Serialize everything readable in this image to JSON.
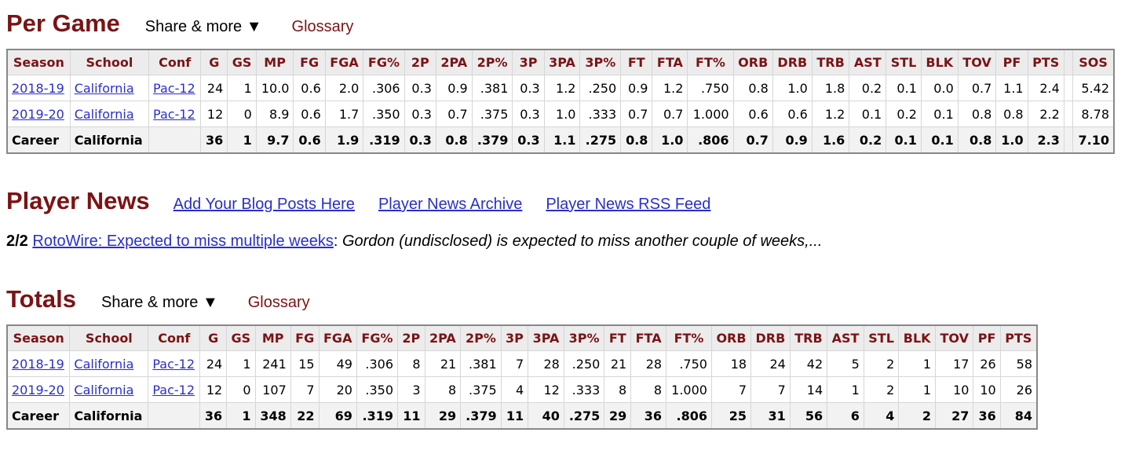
{
  "per_game": {
    "title": "Per Game",
    "share_label": "Share & more ▼",
    "glossary_label": "Glossary",
    "headers": [
      "Season",
      "School",
      "Conf",
      "G",
      "GS",
      "MP",
      "FG",
      "FGA",
      "FG%",
      "2P",
      "2PA",
      "2P%",
      "3P",
      "3PA",
      "3P%",
      "FT",
      "FTA",
      "FT%",
      "ORB",
      "DRB",
      "TRB",
      "AST",
      "STL",
      "BLK",
      "TOV",
      "PF",
      "PTS",
      "",
      "SOS"
    ],
    "rows": [
      [
        "2018-19",
        "California",
        "Pac-12",
        "24",
        "1",
        "10.0",
        "0.6",
        "2.0",
        ".306",
        "0.3",
        "0.9",
        ".381",
        "0.3",
        "1.2",
        ".250",
        "0.9",
        "1.2",
        ".750",
        "0.8",
        "1.0",
        "1.8",
        "0.2",
        "0.1",
        "0.0",
        "0.7",
        "1.1",
        "2.4",
        "",
        "5.42"
      ],
      [
        "2019-20",
        "California",
        "Pac-12",
        "12",
        "0",
        "8.9",
        "0.6",
        "1.7",
        ".350",
        "0.3",
        "0.7",
        ".375",
        "0.3",
        "1.0",
        ".333",
        "0.7",
        "0.7",
        "1.000",
        "0.6",
        "0.6",
        "1.2",
        "0.1",
        "0.2",
        "0.1",
        "0.8",
        "0.8",
        "2.2",
        "",
        "8.78"
      ]
    ],
    "career": [
      "Career",
      "California",
      "",
      "36",
      "1",
      "9.7",
      "0.6",
      "1.9",
      ".319",
      "0.3",
      "0.8",
      ".379",
      "0.3",
      "1.1",
      ".275",
      "0.8",
      "1.0",
      ".806",
      "0.7",
      "0.9",
      "1.6",
      "0.2",
      "0.1",
      "0.1",
      "0.8",
      "1.0",
      "2.3",
      "",
      "7.10"
    ]
  },
  "news": {
    "title": "Player News",
    "links": [
      "Add Your Blog Posts Here",
      "Player News Archive",
      "Player News RSS Feed"
    ],
    "date": "2/2",
    "headline": "RotoWire: Expected to miss multiple weeks",
    "sep": ": ",
    "summary": "Gordon (undisclosed) is expected to miss another couple of weeks,..."
  },
  "totals": {
    "title": "Totals",
    "share_label": "Share & more ▼",
    "glossary_label": "Glossary",
    "headers": [
      "Season",
      "School",
      "Conf",
      "G",
      "GS",
      "MP",
      "FG",
      "FGA",
      "FG%",
      "2P",
      "2PA",
      "2P%",
      "3P",
      "3PA",
      "3P%",
      "FT",
      "FTA",
      "FT%",
      "ORB",
      "DRB",
      "TRB",
      "AST",
      "STL",
      "BLK",
      "TOV",
      "PF",
      "PTS"
    ],
    "rows": [
      [
        "2018-19",
        "California",
        "Pac-12",
        "24",
        "1",
        "241",
        "15",
        "49",
        ".306",
        "8",
        "21",
        ".381",
        "7",
        "28",
        ".250",
        "21",
        "28",
        ".750",
        "18",
        "24",
        "42",
        "5",
        "2",
        "1",
        "17",
        "26",
        "58"
      ],
      [
        "2019-20",
        "California",
        "Pac-12",
        "12",
        "0",
        "107",
        "7",
        "20",
        ".350",
        "3",
        "8",
        ".375",
        "4",
        "12",
        ".333",
        "8",
        "8",
        "1.000",
        "7",
        "7",
        "14",
        "1",
        "2",
        "1",
        "10",
        "10",
        "26"
      ]
    ],
    "career": [
      "Career",
      "California",
      "",
      "36",
      "1",
      "348",
      "22",
      "69",
      ".319",
      "11",
      "29",
      ".379",
      "11",
      "40",
      ".275",
      "29",
      "36",
      ".806",
      "25",
      "31",
      "56",
      "6",
      "4",
      "2",
      "27",
      "36",
      "84"
    ]
  }
}
